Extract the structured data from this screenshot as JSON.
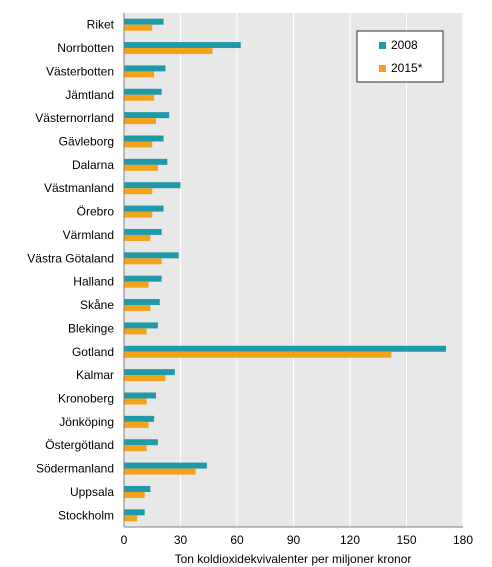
{
  "chart_data": {
    "type": "bar",
    "orientation": "horizontal",
    "title": "",
    "xlabel": "Ton koldioxidekvivalenter  per miljoner kronor",
    "ylabel": "",
    "xlim": [
      0,
      180
    ],
    "xticks": [
      0,
      30,
      60,
      90,
      120,
      150,
      180
    ],
    "grid": true,
    "legend_position": "top-right",
    "categories": [
      "Riket",
      "Norrbotten",
      "Västerbotten",
      "Jämtland",
      "Västernorrland",
      "Gävleborg",
      "Dalarna",
      "Västmanland",
      "Örebro",
      "Värmland",
      "Västra Götaland",
      "Halland",
      "Skåne",
      "Blekinge",
      "Gotland",
      "Kalmar",
      "Kronoberg",
      "Jönköping",
      "Östergötland",
      "Södermanland",
      "Uppsala",
      "Stockholm"
    ],
    "series": [
      {
        "name": "2008",
        "color": "#1f9aa8",
        "values": [
          21,
          62,
          22,
          20,
          24,
          21,
          23,
          30,
          21,
          20,
          29,
          20,
          19,
          18,
          171,
          27,
          17,
          16,
          18,
          44,
          14,
          11
        ]
      },
      {
        "name": "2015*",
        "color": "#f5a21b",
        "values": [
          15,
          47,
          16,
          16,
          17,
          15,
          18,
          15,
          15,
          14,
          20,
          13,
          14,
          12,
          142,
          22,
          12,
          13,
          12,
          38,
          11,
          7
        ]
      }
    ]
  }
}
